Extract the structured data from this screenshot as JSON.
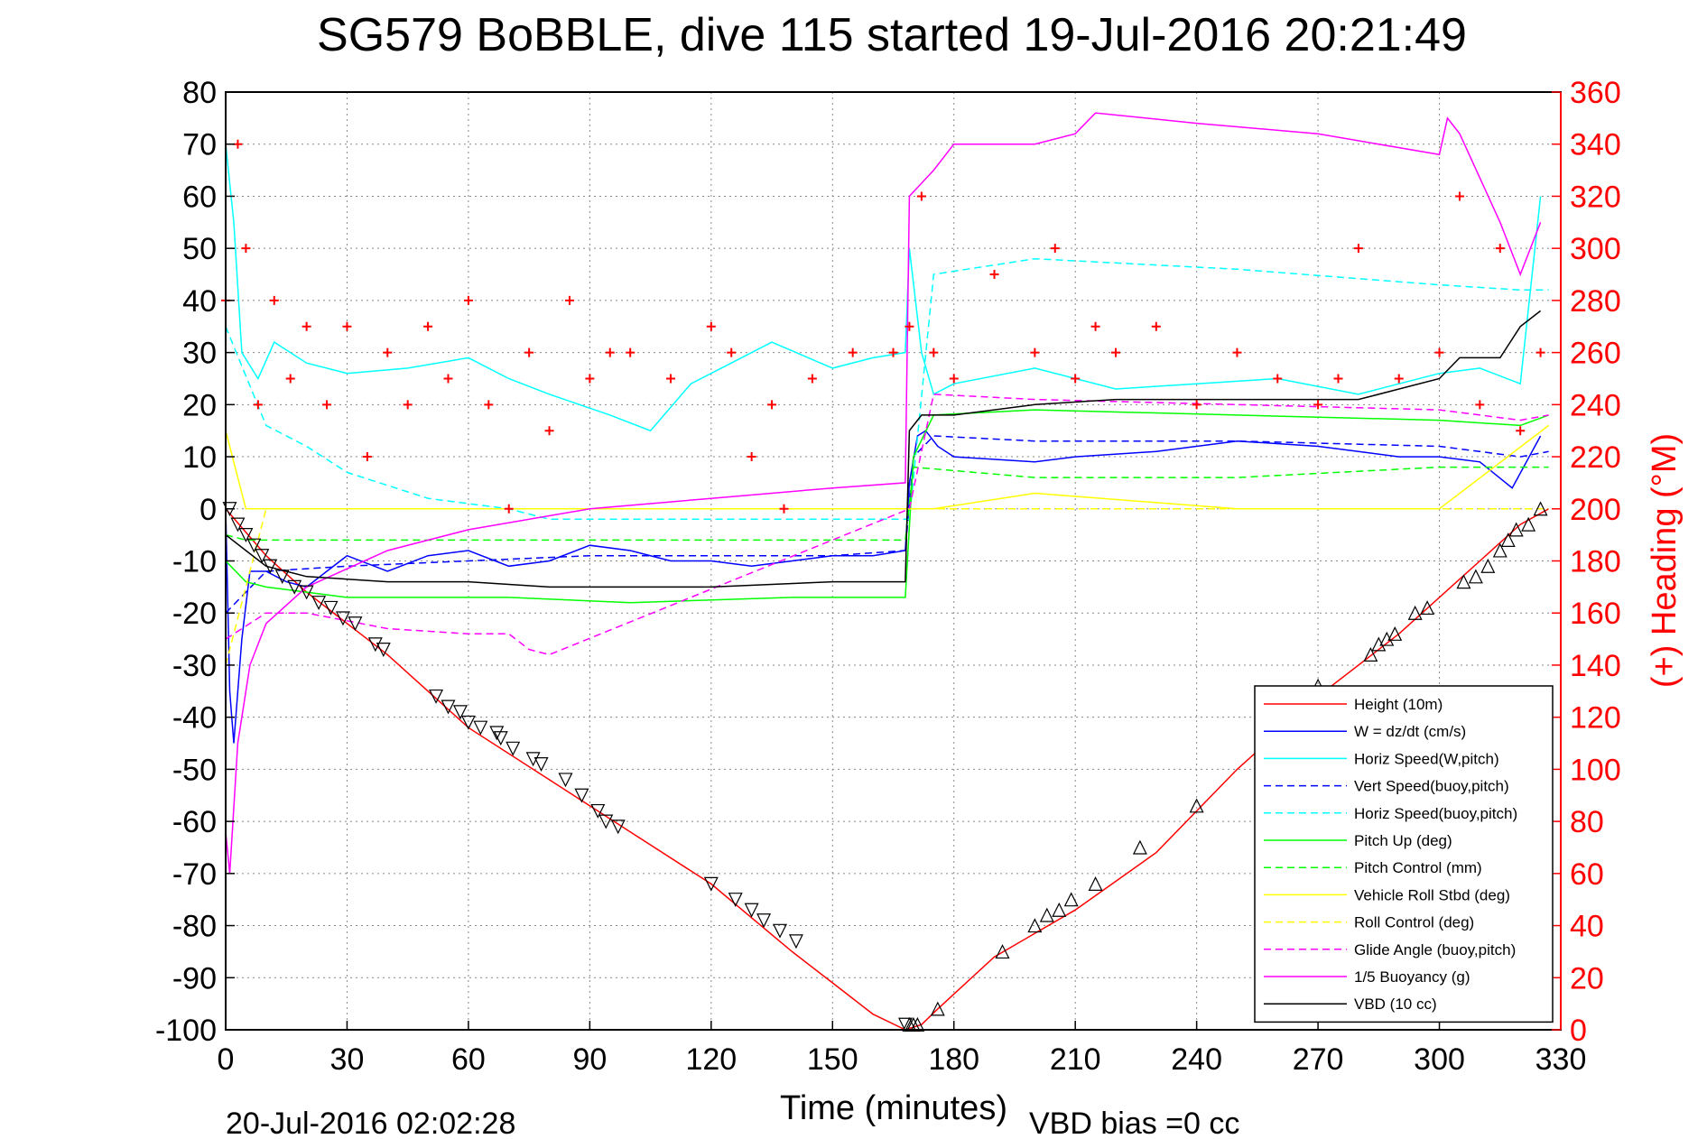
{
  "chart_data": {
    "type": "line",
    "title": "SG579 BoBBLE, dive 115 started 19-Jul-2016 20:21:49",
    "xlabel": "Time (minutes)",
    "ylabel": "",
    "y2label": "(+) Heading (°M)",
    "xlim": [
      0,
      330
    ],
    "ylim": [
      -100,
      80
    ],
    "y2lim": [
      0,
      360
    ],
    "x_ticks": [
      "0",
      "30",
      "60",
      "90",
      "120",
      "150",
      "180",
      "210",
      "240",
      "270",
      "300",
      "330"
    ],
    "y_ticks": [
      "80",
      "70",
      "60",
      "50",
      "40",
      "30",
      "20",
      "10",
      "0",
      "-10",
      "-20",
      "-30",
      "-40",
      "-50",
      "-60",
      "-70",
      "-80",
      "-90",
      "-100"
    ],
    "y2_ticks": [
      "360",
      "340",
      "320",
      "300",
      "280",
      "260",
      "240",
      "220",
      "200",
      "180",
      "160",
      "140",
      "120",
      "100",
      "80",
      "60",
      "40",
      "20",
      "0"
    ],
    "grid": true,
    "legend_position": "bottom-right",
    "footer_left": "20-Jul-2016 02:02:28",
    "footer_right": "VBD bias =0 cc",
    "series": [
      {
        "name": "Height (10m)",
        "color": "#ff0000",
        "style": "solid",
        "x": [
          0,
          10,
          20,
          30,
          40,
          60,
          80,
          100,
          120,
          140,
          150,
          160,
          168,
          172,
          176,
          190,
          210,
          230,
          250,
          270,
          290,
          310,
          320,
          327
        ],
        "values": [
          0,
          -9,
          -16,
          -22,
          -28,
          -42,
          -52,
          -62,
          -72,
          -85,
          -91,
          -97,
          -100,
          -99,
          -96,
          -86,
          -77,
          -66,
          -50,
          -36,
          -24,
          -10,
          -3,
          0
        ]
      },
      {
        "name": "W = dz/dt (cm/s)",
        "color": "#0000ff",
        "style": "solid",
        "x": [
          0,
          1,
          2,
          4,
          6,
          10,
          15,
          20,
          25,
          30,
          40,
          50,
          60,
          70,
          80,
          90,
          100,
          110,
          120,
          130,
          140,
          150,
          160,
          168,
          169,
          171,
          173,
          176,
          180,
          200,
          210,
          230,
          250,
          270,
          280,
          290,
          300,
          310,
          318,
          325
        ],
        "values": [
          0,
          -35,
          -45,
          -25,
          -12,
          -12,
          -14,
          -15,
          -12,
          -9,
          -12,
          -9,
          -8,
          -11,
          -10,
          -7,
          -8,
          -10,
          -10,
          -11,
          -10,
          -9,
          -9,
          -8,
          5,
          14,
          15,
          12,
          10,
          9,
          10,
          11,
          13,
          12,
          11,
          10,
          10,
          9,
          4,
          14
        ]
      },
      {
        "name": "Horiz Speed(W,pitch)",
        "color": "#00ffff",
        "style": "solid",
        "x": [
          0,
          2,
          4,
          8,
          12,
          20,
          30,
          45,
          60,
          70,
          80,
          95,
          105,
          115,
          125,
          135,
          150,
          160,
          168,
          169,
          172,
          175,
          180,
          200,
          220,
          240,
          260,
          280,
          300,
          310,
          320,
          325
        ],
        "values": [
          70,
          55,
          30,
          25,
          32,
          28,
          26,
          27,
          29,
          25,
          22,
          18,
          15,
          24,
          28,
          32,
          27,
          29,
          30,
          50,
          30,
          22,
          24,
          27,
          23,
          24,
          25,
          22,
          26,
          27,
          24,
          60
        ]
      },
      {
        "name": "Vert Speed(buoy,pitch)",
        "color": "#0000ff",
        "style": "dashed",
        "x": [
          0,
          10,
          30,
          60,
          90,
          120,
          150,
          168,
          170,
          175,
          200,
          250,
          300,
          320,
          327
        ],
        "values": [
          -20,
          -12,
          -11,
          -10,
          -9,
          -9,
          -9,
          -8,
          10,
          14,
          13,
          13,
          12,
          10,
          11
        ]
      },
      {
        "name": "Horiz Speed(buoy,pitch)",
        "color": "#00ffff",
        "style": "dashed",
        "x": [
          0,
          10,
          20,
          30,
          50,
          70,
          80,
          169,
          175,
          200,
          250,
          300,
          320,
          327
        ],
        "values": [
          35,
          16,
          12,
          7,
          2,
          0,
          -2,
          -2,
          45,
          48,
          46,
          43,
          42,
          42
        ]
      },
      {
        "name": "Pitch Up (deg)",
        "color": "#00ff00",
        "style": "solid",
        "x": [
          0,
          5,
          10,
          20,
          30,
          50,
          70,
          100,
          140,
          168,
          170,
          175,
          200,
          250,
          300,
          320,
          327
        ],
        "values": [
          -10,
          -14,
          -15,
          -16,
          -17,
          -17,
          -17,
          -18,
          -17,
          -17,
          10,
          18,
          19,
          18,
          17,
          16,
          18
        ]
      },
      {
        "name": "Pitch Control (mm)",
        "color": "#00ff00",
        "style": "dashed",
        "x": [
          0,
          5,
          30,
          168,
          170,
          200,
          250,
          300,
          327
        ],
        "values": [
          -5,
          -6,
          -6,
          -6,
          8,
          6,
          6,
          8,
          8
        ]
      },
      {
        "name": "Vehicle Roll Stbd (deg)",
        "color": "#ffff00",
        "style": "solid",
        "x": [
          0,
          5,
          10,
          30,
          60,
          90,
          120,
          150,
          168,
          175,
          200,
          250,
          300,
          327
        ],
        "values": [
          15,
          0,
          0,
          0,
          0,
          0,
          0,
          0,
          0,
          0,
          3,
          0,
          0,
          16
        ]
      },
      {
        "name": "Roll Control (deg)",
        "color": "#ffff00",
        "style": "dashed",
        "x": [
          0,
          10,
          30,
          60,
          90,
          120,
          150,
          168,
          175,
          200,
          250,
          300,
          327
        ],
        "values": [
          -30,
          0,
          0,
          0,
          0,
          0,
          0,
          0,
          0,
          0,
          0,
          0,
          0
        ]
      },
      {
        "name": "Glide Angle (buoy,pitch)",
        "color": "#ff00ff",
        "style": "dashed",
        "x": [
          0,
          10,
          20,
          40,
          60,
          70,
          75,
          80,
          169,
          175,
          200,
          250,
          300,
          320,
          327
        ],
        "values": [
          -25,
          -20,
          -20,
          -23,
          -24,
          -24,
          -27,
          -28,
          0,
          22,
          21,
          20,
          19,
          17,
          18
        ]
      },
      {
        "name": "1/5 Buoyancy (g)",
        "color": "#ff00ff",
        "style": "solid",
        "x": [
          0,
          1,
          3,
          6,
          10,
          20,
          40,
          60,
          90,
          120,
          150,
          168,
          169,
          175,
          180,
          200,
          210,
          215,
          240,
          270,
          300,
          302,
          305,
          315,
          320,
          325
        ],
        "values": [
          -62,
          -70,
          -45,
          -30,
          -22,
          -15,
          -8,
          -4,
          0,
          2,
          4,
          5,
          60,
          65,
          70,
          70,
          72,
          76,
          74,
          72,
          68,
          75,
          72,
          55,
          45,
          55
        ]
      },
      {
        "name": "VBD (10 cc)",
        "color": "#000000",
        "style": "solid",
        "x": [
          0,
          5,
          10,
          20,
          40,
          60,
          80,
          100,
          120,
          150,
          168,
          169,
          172,
          180,
          200,
          220,
          250,
          280,
          300,
          305,
          315,
          320,
          325
        ],
        "values": [
          -5,
          -8,
          -11,
          -13,
          -14,
          -14,
          -15,
          -15,
          -15,
          -14,
          -14,
          15,
          18,
          18,
          20,
          21,
          21,
          21,
          25,
          29,
          29,
          35,
          38
        ]
      },
      {
        "name": "Heading",
        "color": "#ff0000",
        "style": "marker",
        "marker": "+",
        "x": [
          0,
          3,
          5,
          8,
          12,
          16,
          20,
          25,
          30,
          35,
          40,
          45,
          50,
          55,
          60,
          65,
          70,
          75,
          80,
          85,
          90,
          95,
          100,
          110,
          120,
          125,
          130,
          135,
          138,
          145,
          155,
          165,
          169,
          172,
          175,
          180,
          190,
          200,
          205,
          210,
          215,
          220,
          230,
          240,
          250,
          260,
          270,
          275,
          280,
          290,
          300,
          305,
          310,
          315,
          320,
          325
        ],
        "values": [
          280,
          340,
          300,
          240,
          280,
          250,
          270,
          240,
          270,
          220,
          260,
          240,
          270,
          250,
          280,
          240,
          200,
          260,
          230,
          280,
          250,
          260,
          260,
          250,
          270,
          260,
          220,
          240,
          200,
          250,
          260,
          260,
          270,
          320,
          260,
          250,
          290,
          260,
          300,
          250,
          270,
          260,
          270,
          240,
          260,
          250,
          240,
          250,
          300,
          250,
          260,
          320,
          240,
          300,
          230,
          260
        ]
      }
    ],
    "markers": [
      {
        "name": "",
        "marker": "triangle",
        "color": "#000000",
        "x": [
          1,
          3,
          5,
          7,
          9,
          11,
          14,
          17,
          20,
          23,
          26,
          29,
          32,
          37,
          39,
          52,
          55,
          58,
          60,
          63,
          67,
          68,
          71,
          76,
          78,
          84,
          88,
          92,
          94,
          97,
          120,
          126,
          130,
          133,
          137,
          141,
          168,
          169,
          170,
          171,
          176,
          192,
          200,
          203,
          206,
          209,
          215,
          226,
          240,
          270,
          283,
          285,
          287,
          289,
          294,
          297,
          306,
          309,
          312,
          315,
          317,
          319,
          322,
          325
        ],
        "values": [
          0,
          -3,
          -5,
          -7,
          -9,
          -11,
          -13,
          -15,
          -16,
          -18,
          -19,
          -21,
          -22,
          -26,
          -27,
          -36,
          -38,
          -39,
          -41,
          -42,
          -43,
          -44,
          -46,
          -48,
          -49,
          -52,
          -55,
          -58,
          -60,
          -61,
          -72,
          -75,
          -77,
          -79,
          -81,
          -83,
          -99,
          -99,
          -99,
          -99,
          -96,
          -85,
          -80,
          -78,
          -77,
          -75,
          -72,
          -65,
          -57,
          -34,
          -28,
          -26,
          -25,
          -24,
          -20,
          -19,
          -14,
          -13,
          -11,
          -8,
          -6,
          -4,
          -3,
          0
        ]
      }
    ]
  }
}
